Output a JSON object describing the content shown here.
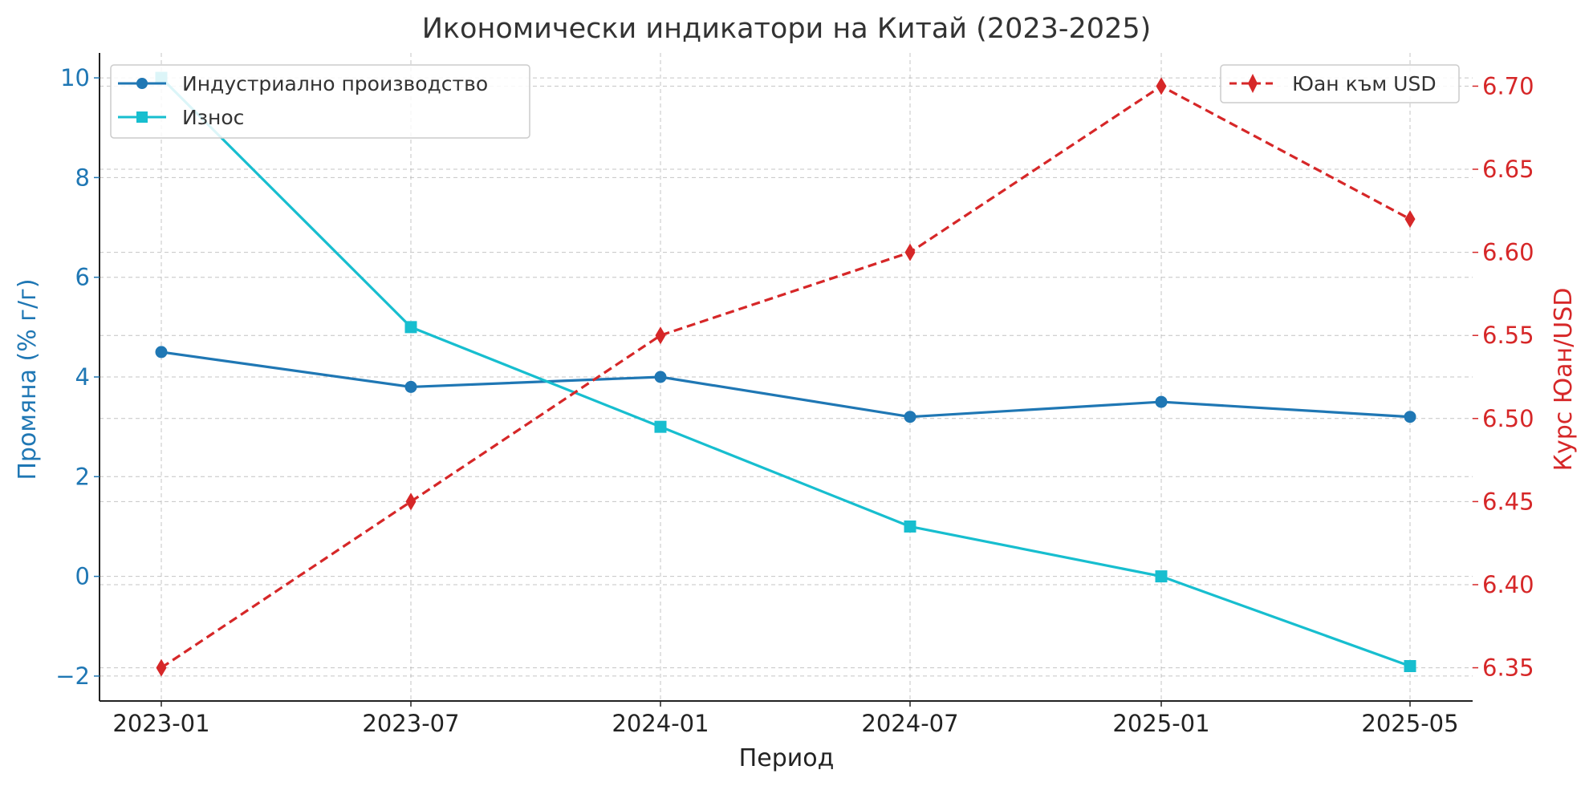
{
  "chart_data": {
    "type": "line",
    "title": "Икономически индикатори на Китай (2023-2025)",
    "xlabel": "Период",
    "ylabel_left": "Промяна (% г/г)",
    "ylabel_right": "Курс Юан/USD",
    "categories": [
      "2023-01",
      "2023-07",
      "2024-01",
      "2024-07",
      "2025-01",
      "2025-05"
    ],
    "ylim_left": [
      -2.5,
      10.5
    ],
    "ylim_right": [
      6.33,
      6.72
    ],
    "yticks_left": [
      -2,
      0,
      2,
      4,
      6,
      8,
      10
    ],
    "yticks_left_labels": [
      "−2",
      "0",
      "2",
      "4",
      "6",
      "8",
      "10"
    ],
    "yticks_right": [
      6.35,
      6.4,
      6.45,
      6.5,
      6.55,
      6.6,
      6.65,
      6.7
    ],
    "yticks_right_labels": [
      "6.35",
      "6.40",
      "6.45",
      "6.50",
      "6.55",
      "6.60",
      "6.65",
      "6.70"
    ],
    "grid": true,
    "series": [
      {
        "name": "Индустриално производство",
        "axis": "left",
        "color": "#1f77b4",
        "marker": "circle",
        "dash": "solid",
        "values": [
          4.5,
          3.8,
          4.0,
          3.2,
          3.5,
          3.2
        ]
      },
      {
        "name": "Износ",
        "axis": "left",
        "color": "#17becf",
        "marker": "square",
        "dash": "solid",
        "values": [
          10.0,
          5.0,
          3.0,
          1.0,
          0.0,
          -1.8
        ]
      },
      {
        "name": "Юан към USD",
        "axis": "right",
        "color": "#d62728",
        "marker": "diamond",
        "dash": "dashed",
        "values": [
          6.35,
          6.45,
          6.55,
          6.6,
          6.7,
          6.62
        ]
      }
    ],
    "legend_left_placement": "top-left",
    "legend_right_placement": "top-right",
    "left_axis_color": "#1f77b4",
    "right_axis_color": "#d62728"
  }
}
